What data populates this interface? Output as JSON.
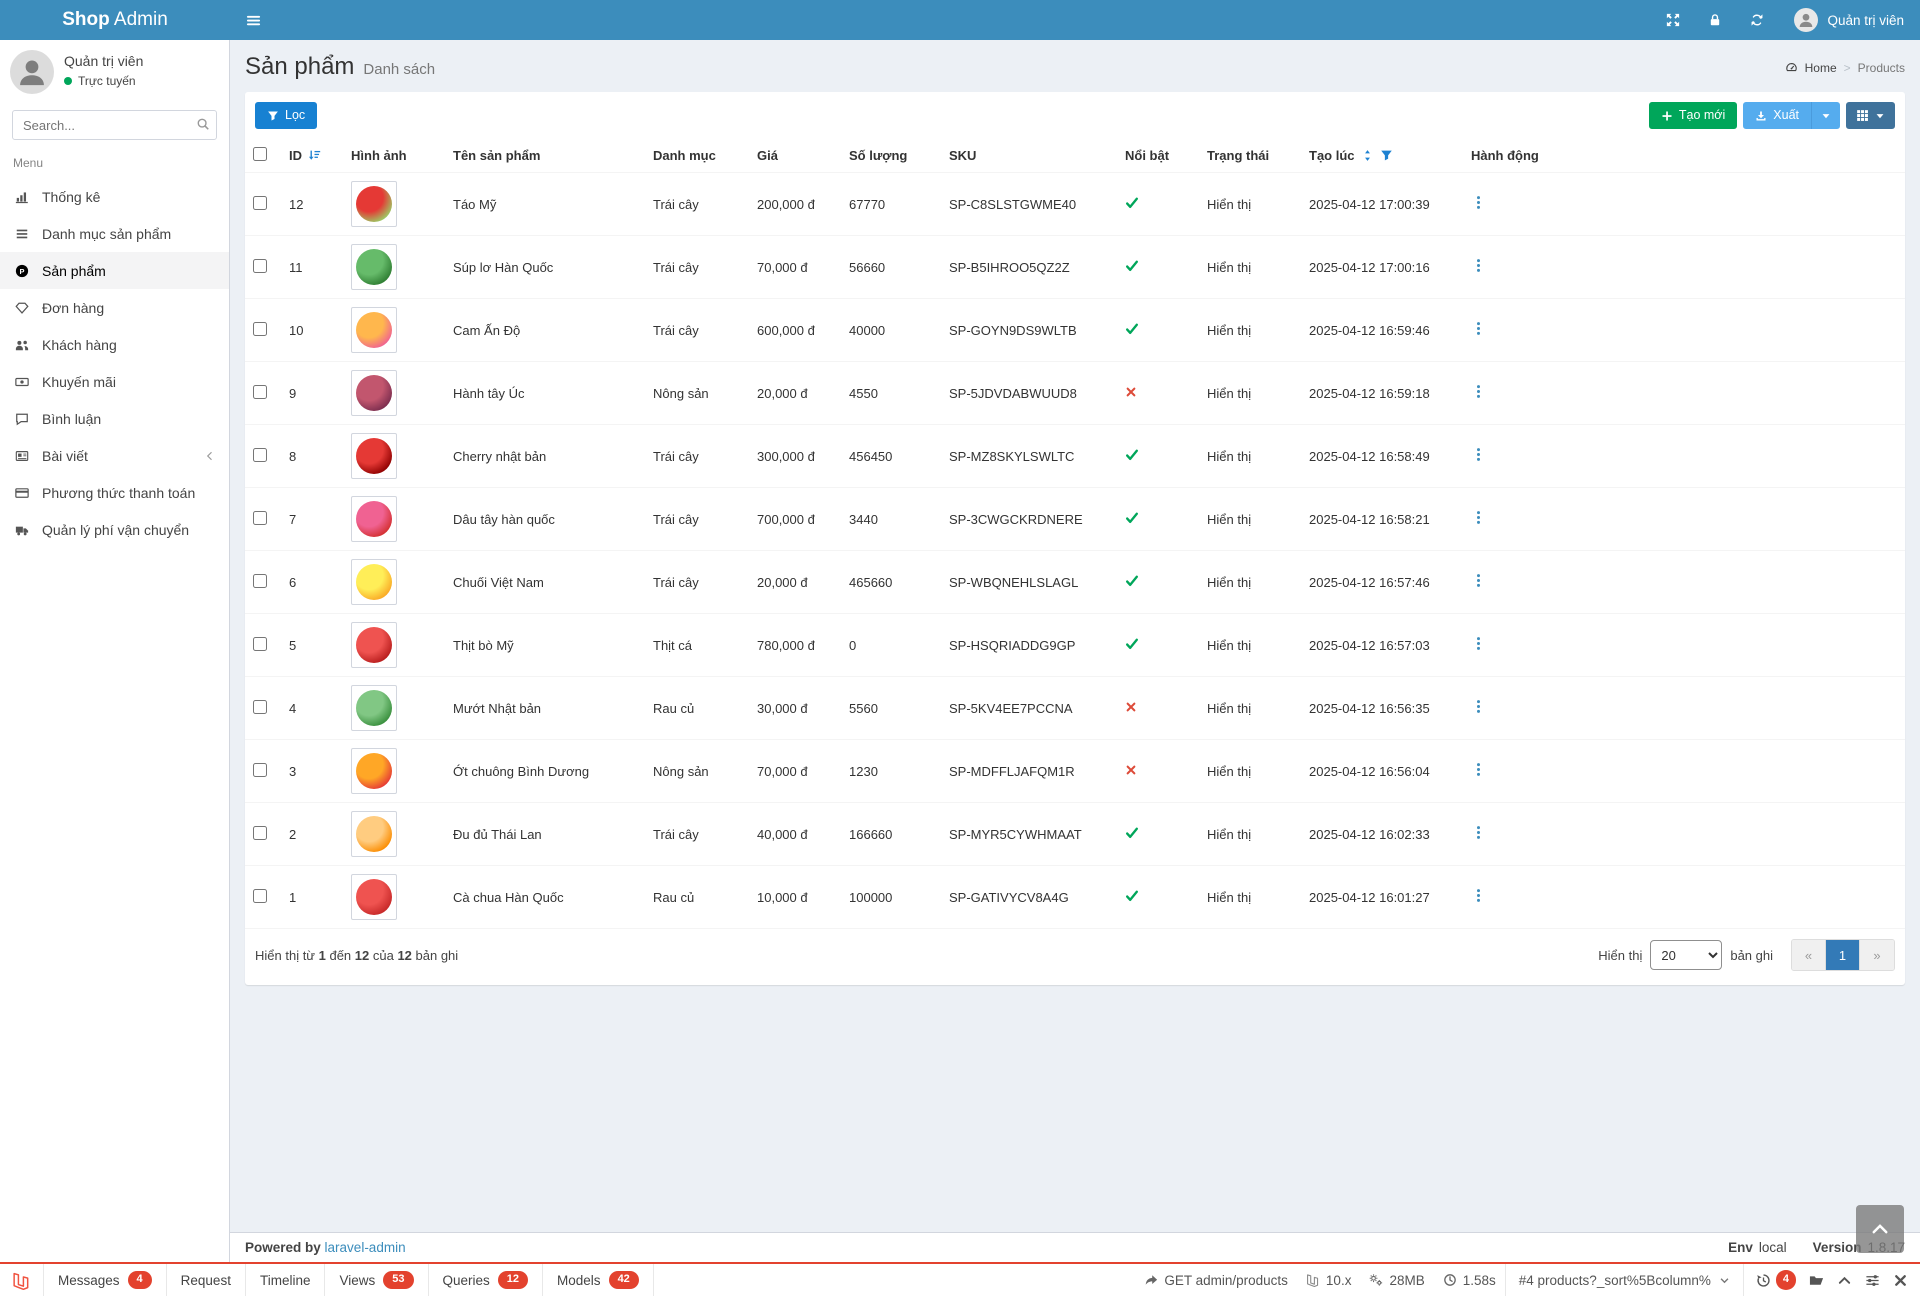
{
  "colors": {
    "topbar": "#3c8dbc",
    "filter_button": "#1781d2",
    "create_button": "#00a65a",
    "export_button": "#55acee",
    "columns_button": "#3f729b",
    "featured_yes": "#00a65a",
    "featured_no": "#dd4b39",
    "debug_accent": "#e3422e",
    "pagination_active": "#337ab7"
  },
  "topbar": {
    "brand_bold": "Shop",
    "brand_rest": " Admin",
    "user_label": "Quản trị viên"
  },
  "sidebar": {
    "user_name": "Quản trị viên",
    "user_status": "Trực tuyến",
    "search_placeholder": "Search...",
    "menu_label": "Menu",
    "items": [
      {
        "icon": "chart-bar-icon",
        "label": "Thống kê",
        "active": false,
        "chevron": false
      },
      {
        "icon": "list-icon",
        "label": "Danh mục sản phẩm",
        "active": false,
        "chevron": false
      },
      {
        "icon": "product-icon",
        "label": "Sản phẩm",
        "active": true,
        "chevron": false
      },
      {
        "icon": "diamond-icon",
        "label": "Đơn hàng",
        "active": false,
        "chevron": false
      },
      {
        "icon": "users-icon",
        "label": "Khách hàng",
        "active": false,
        "chevron": false
      },
      {
        "icon": "money-icon",
        "label": "Khuyến mãi",
        "active": false,
        "chevron": false
      },
      {
        "icon": "comment-icon",
        "label": "Bình luận",
        "active": false,
        "chevron": false
      },
      {
        "icon": "newspaper-icon",
        "label": "Bài viết",
        "active": false,
        "chevron": true
      },
      {
        "icon": "credit-card-icon",
        "label": "Phương thức thanh toán",
        "active": false,
        "chevron": false
      },
      {
        "icon": "truck-icon",
        "label": "Quản lý phí vận chuyển",
        "active": false,
        "chevron": false
      }
    ]
  },
  "header": {
    "title": "Sản phẩm",
    "subtitle": "Danh sách",
    "breadcrumb": {
      "home": "Home",
      "current": "Products"
    }
  },
  "toolbar": {
    "filter_label": "Lọc",
    "create_label": "Tạo mới",
    "export_label": "Xuất"
  },
  "table": {
    "columns": [
      "ID",
      "Hình ảnh",
      "Tên sản phẩm",
      "Danh mục",
      "Giá",
      "Số lượng",
      "SKU",
      "Nổi bật",
      "Trạng thái",
      "Tạo lúc",
      "Hành động"
    ],
    "rows": [
      {
        "id": "12",
        "image": "apple",
        "img_c1": "#e53935",
        "img_c2": "#9ccc65",
        "name": "Táo Mỹ",
        "category": "Trái cây",
        "price": "200,000 đ",
        "quantity": "67770",
        "sku": "SP-C8SLSTGWME40",
        "featured": true,
        "status": "Hiển thị",
        "created": "2025-04-12 17:00:39"
      },
      {
        "id": "11",
        "image": "broccoli",
        "img_c1": "#66bb6a",
        "img_c2": "#2e7d32",
        "name": "Súp lơ Hàn Quốc",
        "category": "Trái cây",
        "price": "70,000 đ",
        "quantity": "56660",
        "sku": "SP-B5IHROO5QZ2Z",
        "featured": true,
        "status": "Hiển thị",
        "created": "2025-04-12 17:00:16"
      },
      {
        "id": "10",
        "image": "grapefruit",
        "img_c1": "#ffb74d",
        "img_c2": "#f06292",
        "name": "Cam Ấn Độ",
        "category": "Trái cây",
        "price": "600,000 đ",
        "quantity": "40000",
        "sku": "SP-GOYN9DS9WLTB",
        "featured": true,
        "status": "Hiển thị",
        "created": "2025-04-12 16:59:46"
      },
      {
        "id": "9",
        "image": "onion",
        "img_c1": "#c2566e",
        "img_c2": "#7b2d4e",
        "name": "Hành tây Úc",
        "category": "Nông sản",
        "price": "20,000 đ",
        "quantity": "4550",
        "sku": "SP-5JDVDABWUUD8",
        "featured": false,
        "status": "Hiển thị",
        "created": "2025-04-12 16:59:18"
      },
      {
        "id": "8",
        "image": "cherry",
        "img_c1": "#e53935",
        "img_c2": "#8e0000",
        "name": "Cherry nhật bản",
        "category": "Trái cây",
        "price": "300,000 đ",
        "quantity": "456450",
        "sku": "SP-MZ8SKYLSWLTC",
        "featured": true,
        "status": "Hiển thị",
        "created": "2025-04-12 16:58:49"
      },
      {
        "id": "7",
        "image": "strawberry",
        "img_c1": "#f06292",
        "img_c2": "#d32f2f",
        "name": "Dâu tây hàn quốc",
        "category": "Trái cây",
        "price": "700,000 đ",
        "quantity": "3440",
        "sku": "SP-3CWGCKRDNERE",
        "featured": true,
        "status": "Hiển thị",
        "created": "2025-04-12 16:58:21"
      },
      {
        "id": "6",
        "image": "banana",
        "img_c1": "#ffee58",
        "img_c2": "#f9a825",
        "name": "Chuối Việt Nam",
        "category": "Trái cây",
        "price": "20,000 đ",
        "quantity": "465660",
        "sku": "SP-WBQNEHLSLAGL",
        "featured": true,
        "status": "Hiển thị",
        "created": "2025-04-12 16:57:46"
      },
      {
        "id": "5",
        "image": "beef",
        "img_c1": "#ef5350",
        "img_c2": "#b71c1c",
        "name": "Thịt bò Mỹ",
        "category": "Thịt cá",
        "price": "780,000 đ",
        "quantity": "0",
        "sku": "SP-HSQRIADDG9GP",
        "featured": true,
        "status": "Hiển thị",
        "created": "2025-04-12 16:57:03"
      },
      {
        "id": "4",
        "image": "gourd",
        "img_c1": "#81c784",
        "img_c2": "#388e3c",
        "name": "Mướt Nhật bản",
        "category": "Rau củ",
        "price": "30,000 đ",
        "quantity": "5560",
        "sku": "SP-5KV4EE7PCCNA",
        "featured": false,
        "status": "Hiển thị",
        "created": "2025-04-12 16:56:35"
      },
      {
        "id": "3",
        "image": "bell-pepper",
        "img_c1": "#ffa726",
        "img_c2": "#e53935",
        "name": "Ớt chuông Bình Dương",
        "category": "Nông sản",
        "price": "70,000 đ",
        "quantity": "1230",
        "sku": "SP-MDFFLJAFQM1R",
        "featured": false,
        "status": "Hiển thị",
        "created": "2025-04-12 16:56:04"
      },
      {
        "id": "2",
        "image": "papaya",
        "img_c1": "#ffcc80",
        "img_c2": "#fb8c00",
        "name": "Đu đủ Thái Lan",
        "category": "Trái cây",
        "price": "40,000 đ",
        "quantity": "166660",
        "sku": "SP-MYR5CYWHMAAT",
        "featured": true,
        "status": "Hiển thị",
        "created": "2025-04-12 16:02:33"
      },
      {
        "id": "1",
        "image": "tomato",
        "img_c1": "#ef5350",
        "img_c2": "#c62828",
        "name": "Cà chua Hàn Quốc",
        "category": "Rau củ",
        "price": "10,000 đ",
        "quantity": "100000",
        "sku": "SP-GATIVYCV8A4G",
        "featured": true,
        "status": "Hiển thị",
        "created": "2025-04-12 16:01:27"
      }
    ]
  },
  "pagination": {
    "summary_parts": [
      "Hiển thị từ ",
      "1",
      " đến ",
      "12",
      " của ",
      "12",
      " bản ghi"
    ],
    "per_page_label": "Hiển thị",
    "per_page_value": "20",
    "per_page_suffix": "bản ghi",
    "pages": [
      {
        "label": "«",
        "state": "disabled"
      },
      {
        "label": "1",
        "state": "active"
      },
      {
        "label": "»",
        "state": "disabled"
      }
    ]
  },
  "footer": {
    "powered_label": "Powered by",
    "powered_link": "laravel-admin",
    "env_label": "Env",
    "env_value": "local",
    "version_label": "Version",
    "version_value": "1.8.17"
  },
  "debugbar": {
    "tabs": [
      {
        "label": "Messages",
        "badge": "4"
      },
      {
        "label": "Request",
        "badge": ""
      },
      {
        "label": "Timeline",
        "badge": ""
      },
      {
        "label": "Views",
        "badge": "53"
      },
      {
        "label": "Queries",
        "badge": "12"
      },
      {
        "label": "Models",
        "badge": "42"
      }
    ],
    "request_method": "GET admin/products",
    "laravel_version": "10.x",
    "memory": "28MB",
    "time": "1.58s",
    "route": "#4 products?_sort%5Bcolumn%",
    "history_badge": "4"
  }
}
